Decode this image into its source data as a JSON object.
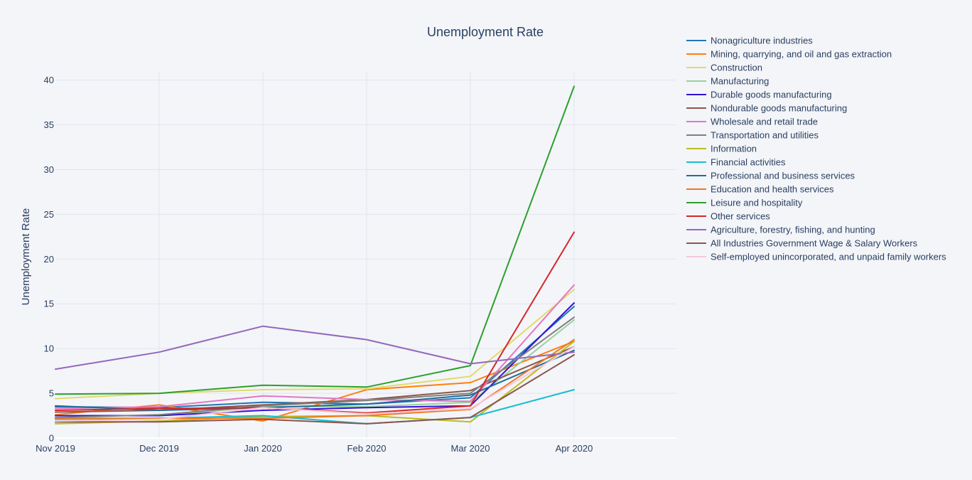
{
  "chart_data": {
    "type": "line",
    "title": "Unemployment Rate",
    "xlabel": "",
    "ylabel": "Unemployment Rate",
    "x": [
      "Nov 2019",
      "Dec 2019",
      "Jan 2020",
      "Feb 2020",
      "Mar 2020",
      "Apr 2020"
    ],
    "ylim": [
      0,
      41
    ],
    "yticks": [
      0,
      5,
      10,
      15,
      20,
      25,
      30,
      35,
      40
    ],
    "grid": true,
    "legend_position": "right",
    "series": [
      {
        "name": "Nonagriculture industries",
        "color": "#1f77b4",
        "values": [
          3.5,
          3.4,
          4.0,
          3.8,
          4.5,
          14.7
        ]
      },
      {
        "name": "Mining, quarrying, and oil and gas extraction",
        "color": "#ff7f0e",
        "values": [
          2.6,
          3.7,
          1.9,
          5.4,
          6.2,
          10.8
        ]
      },
      {
        "name": "Construction",
        "color": "#e0db6a",
        "values": [
          4.4,
          5.0,
          5.4,
          5.5,
          6.9,
          16.6
        ]
      },
      {
        "name": "Manufacturing",
        "color": "#98d19a",
        "values": [
          2.5,
          2.5,
          3.5,
          3.5,
          4.0,
          13.2
        ]
      },
      {
        "name": "Durable goods manufacturing",
        "color": "#3312d6",
        "values": [
          2.5,
          2.5,
          3.1,
          3.4,
          3.6,
          15.1
        ]
      },
      {
        "name": "Nondurable goods manufacturing",
        "color": "#8c564b",
        "values": [
          2.9,
          3.1,
          3.7,
          4.3,
          5.3,
          10.2
        ]
      },
      {
        "name": "Wholesale and retail trade",
        "color": "#e377c2",
        "values": [
          3.3,
          3.5,
          4.7,
          4.3,
          4.1,
          17.1
        ]
      },
      {
        "name": "Transportation and utilities",
        "color": "#7f7f7f",
        "values": [
          2.3,
          2.6,
          3.6,
          4.2,
          5.0,
          13.5
        ]
      },
      {
        "name": "Information",
        "color": "#bcbd22",
        "values": [
          1.6,
          1.9,
          2.4,
          2.5,
          1.8,
          10.8
        ]
      },
      {
        "name": "Financial activities",
        "color": "#17becf",
        "values": [
          2.1,
          2.2,
          2.5,
          1.6,
          2.3,
          5.4
        ]
      },
      {
        "name": "Professional and business services",
        "color": "#1f6d9a",
        "values": [
          3.6,
          3.1,
          3.4,
          3.8,
          4.8,
          9.8
        ]
      },
      {
        "name": "Education and health services",
        "color": "#f07a20",
        "values": [
          2.2,
          2.2,
          2.2,
          2.5,
          3.2,
          11.0
        ]
      },
      {
        "name": "Leisure and hospitality",
        "color": "#2ca02c",
        "values": [
          4.9,
          5.0,
          5.9,
          5.7,
          8.1,
          39.3
        ]
      },
      {
        "name": "Other services",
        "color": "#d62728",
        "values": [
          3.1,
          3.3,
          3.4,
          2.8,
          3.6,
          23.0
        ]
      },
      {
        "name": "Agriculture, forestry, fishing, and hunting",
        "color": "#9467bd",
        "values": [
          7.7,
          9.6,
          12.5,
          11.0,
          8.3,
          9.6
        ]
      },
      {
        "name": "All Industries Government Wage & Salary Workers",
        "color": "#8c564b",
        "values": [
          1.8,
          1.8,
          2.1,
          1.6,
          2.3,
          9.3
        ]
      },
      {
        "name": "Self-employed unincorporated, and unpaid family workers",
        "color": "#f7c6dc",
        "values": [
          1.9,
          2.1,
          3.4,
          2.7,
          3.3,
          10.2
        ]
      }
    ]
  }
}
